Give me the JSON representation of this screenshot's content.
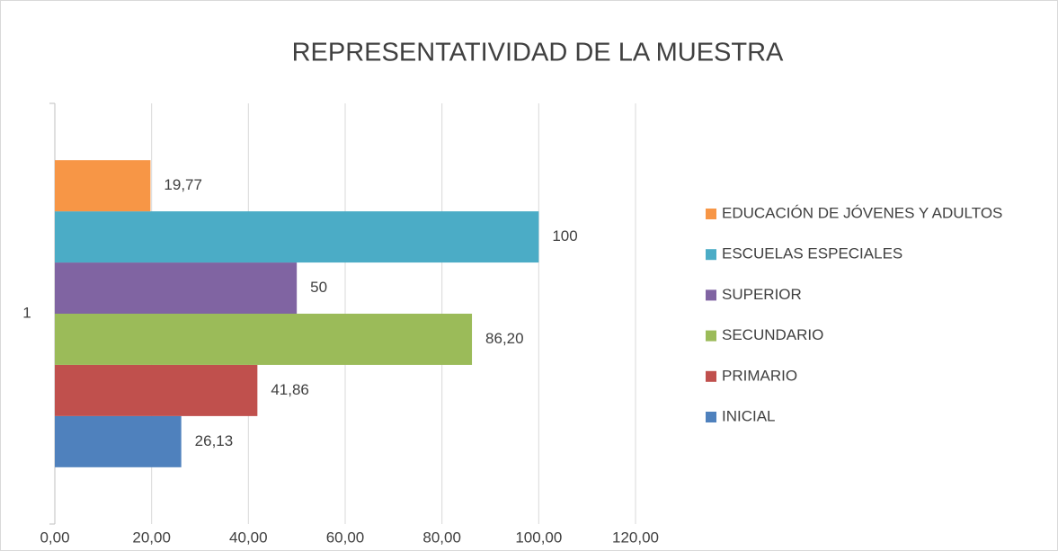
{
  "chart_data": {
    "type": "bar",
    "orientation": "horizontal",
    "title": "REPRESENTATIVIDAD DE LA MUESTRA",
    "categories": [
      "1"
    ],
    "series": [
      {
        "name": "INICIAL",
        "color": "#4f81bd",
        "values": [
          26.13
        ],
        "value_labels": [
          "26,13"
        ]
      },
      {
        "name": "PRIMARIO",
        "color": "#c0504d",
        "values": [
          41.86
        ],
        "value_labels": [
          "41,86"
        ]
      },
      {
        "name": "SECUNDARIO",
        "color": "#9bbb59",
        "values": [
          86.2
        ],
        "value_labels": [
          "86,20"
        ]
      },
      {
        "name": "SUPERIOR",
        "color": "#8064a2",
        "values": [
          50
        ],
        "value_labels": [
          "50"
        ]
      },
      {
        "name": "ESCUELAS ESPECIALES",
        "color": "#4bacc6",
        "values": [
          100
        ],
        "value_labels": [
          "100"
        ]
      },
      {
        "name": "EDUCACIÓN DE JÓVENES Y ADULTOS",
        "color": "#f79646",
        "values": [
          19.77
        ],
        "value_labels": [
          "19,77"
        ]
      }
    ],
    "xlim": [
      0,
      120
    ],
    "xticks": [
      {
        "value": 0,
        "label": "0,00"
      },
      {
        "value": 20,
        "label": "20,00"
      },
      {
        "value": 40,
        "label": "40,00"
      },
      {
        "value": 60,
        "label": "60,00"
      },
      {
        "value": 80,
        "label": "80,00"
      },
      {
        "value": 100,
        "label": "100,00"
      },
      {
        "value": 120,
        "label": "120,00"
      }
    ],
    "grid": true,
    "legend": "right"
  }
}
